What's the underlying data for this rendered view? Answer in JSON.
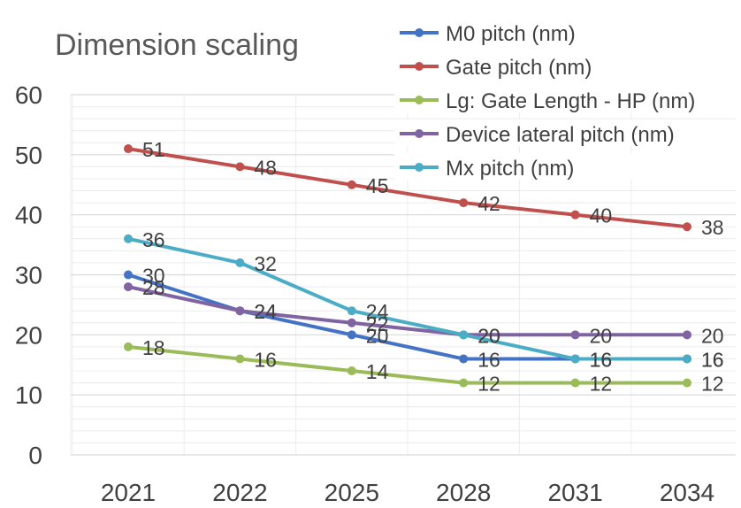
{
  "chart_data": {
    "type": "line",
    "title": "Dimension scaling",
    "xlabel": "",
    "ylabel": "",
    "categories": [
      "2021",
      "2022",
      "2025",
      "2028",
      "2031",
      "2034"
    ],
    "ylim": [
      0,
      60
    ],
    "y_ticks": [
      0,
      10,
      20,
      30,
      40,
      50,
      60
    ],
    "grid": true,
    "legend_position": "top-right",
    "data_labels": true,
    "series": [
      {
        "name": "M0 pitch (nm)",
        "color": "#4472C4",
        "values": [
          30,
          24,
          20,
          16,
          16,
          16
        ]
      },
      {
        "name": "Gate pitch (nm)",
        "color": "#C0504D",
        "values": [
          51,
          48,
          45,
          42,
          40,
          38
        ]
      },
      {
        "name": "Lg: Gate Length - HP (nm)",
        "color": "#9BBB59",
        "values": [
          18,
          16,
          14,
          12,
          12,
          12
        ]
      },
      {
        "name": "Device lateral pitch (nm)",
        "color": "#8064A2",
        "values": [
          28,
          24,
          22,
          20,
          20,
          20
        ]
      },
      {
        "name": "Mx pitch (nm)",
        "color": "#4BACC6",
        "values": [
          36,
          32,
          24,
          20,
          16,
          16
        ]
      }
    ]
  }
}
